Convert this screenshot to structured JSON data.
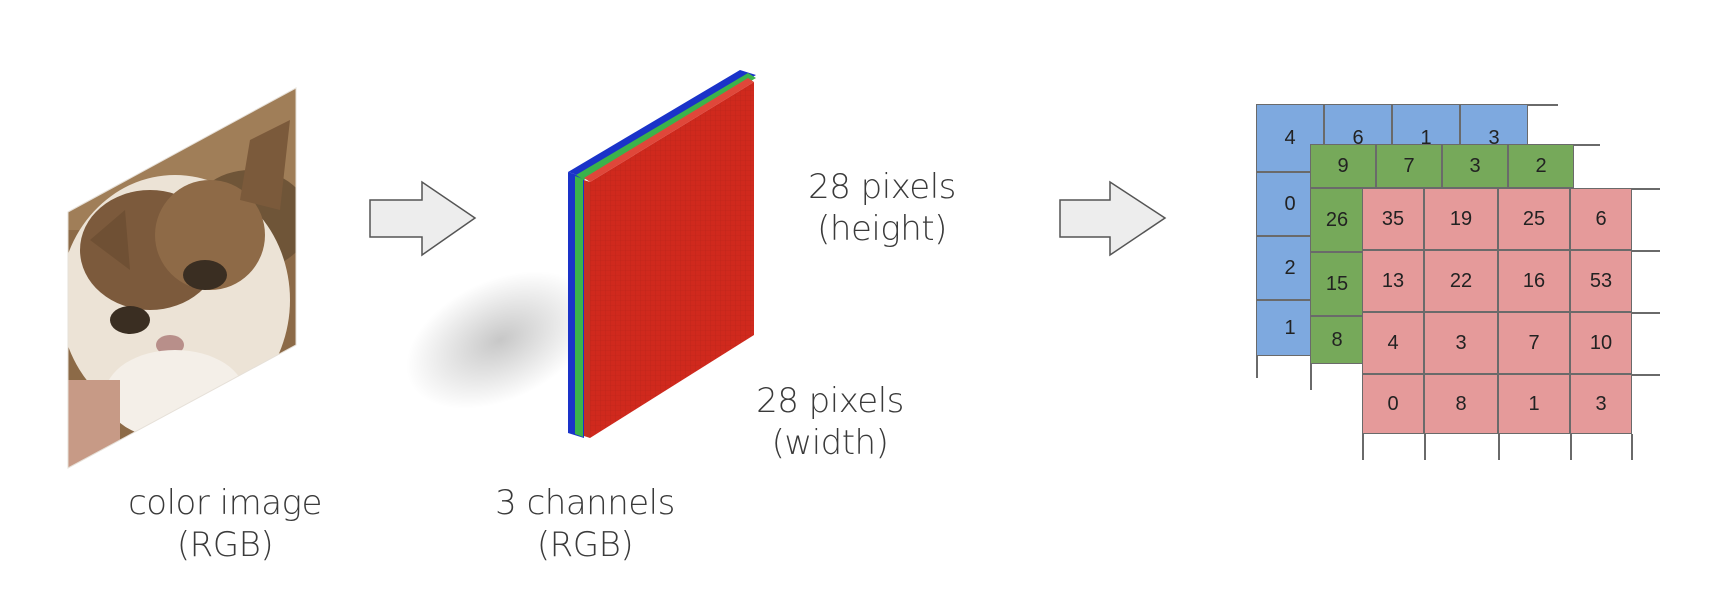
{
  "labels": {
    "color_image": [
      "color image",
      "(RGB)"
    ],
    "channels": [
      "3 channels",
      "(RGB)"
    ],
    "height": [
      "28 pixels",
      "(height)"
    ],
    "width": [
      "28 pixels",
      "(width)"
    ]
  },
  "colors": {
    "blue_channel": "#7ea9df",
    "green_channel": "#76a95a",
    "red_channel": "#e59a9a",
    "cube_red": "#d0291d",
    "cube_blue": "#1a33c9",
    "cube_green": "#3bb34b",
    "arrow_fill": "#ededed",
    "arrow_stroke": "#555555"
  },
  "icons": {
    "photo": "cat-photo-icon",
    "arrows": "right-arrow-icon"
  },
  "grids": {
    "blue": {
      "values": [
        "4",
        "6",
        "1",
        "3",
        "0",
        "2",
        "1"
      ]
    },
    "green": {
      "values": [
        "9",
        "7",
        "3",
        "2",
        "26",
        "15",
        "8"
      ]
    },
    "red": {
      "rows": [
        [
          "35",
          "19",
          "25",
          "6"
        ],
        [
          "13",
          "22",
          "16",
          "53"
        ],
        [
          "4",
          "3",
          "7",
          "10"
        ],
        [
          "0",
          "8",
          "1",
          "3"
        ]
      ]
    }
  }
}
